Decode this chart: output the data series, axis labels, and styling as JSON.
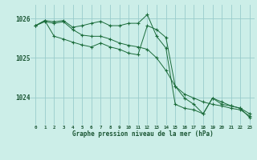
{
  "title": "Graphe pression niveau de la mer (hPa)",
  "bg_color": "#cceee8",
  "grid_color": "#99cccc",
  "line_color": "#1a6b3a",
  "xlim": [
    -0.5,
    23.5
  ],
  "ylim": [
    1023.3,
    1026.35
  ],
  "yticks": [
    1024,
    1025,
    1026
  ],
  "xticks": [
    0,
    1,
    2,
    3,
    4,
    5,
    6,
    7,
    8,
    9,
    10,
    11,
    12,
    13,
    14,
    15,
    16,
    17,
    18,
    19,
    20,
    21,
    22,
    23
  ],
  "line1": [
    1025.82,
    1025.95,
    1025.92,
    1025.95,
    1025.78,
    1025.82,
    1025.88,
    1025.93,
    1025.82,
    1025.82,
    1025.88,
    1025.88,
    1026.1,
    1025.55,
    1025.25,
    1023.82,
    1023.72,
    1023.68,
    1023.58,
    1023.98,
    1023.88,
    1023.78,
    1023.72,
    1023.58
  ],
  "line2": [
    1025.82,
    1025.95,
    1025.55,
    1025.48,
    1025.4,
    1025.33,
    1025.28,
    1025.38,
    1025.28,
    1025.22,
    1025.12,
    1025.08,
    1025.82,
    1025.72,
    1025.52,
    1024.28,
    1023.98,
    1023.82,
    1023.58,
    1023.98,
    1023.82,
    1023.78,
    1023.72,
    1023.48
  ],
  "line3": [
    1025.82,
    1025.92,
    1025.88,
    1025.92,
    1025.72,
    1025.58,
    1025.55,
    1025.55,
    1025.48,
    1025.38,
    1025.32,
    1025.28,
    1025.22,
    1025.0,
    1024.68,
    1024.28,
    1024.08,
    1023.98,
    1023.88,
    1023.82,
    1023.78,
    1023.72,
    1023.68,
    1023.52
  ]
}
